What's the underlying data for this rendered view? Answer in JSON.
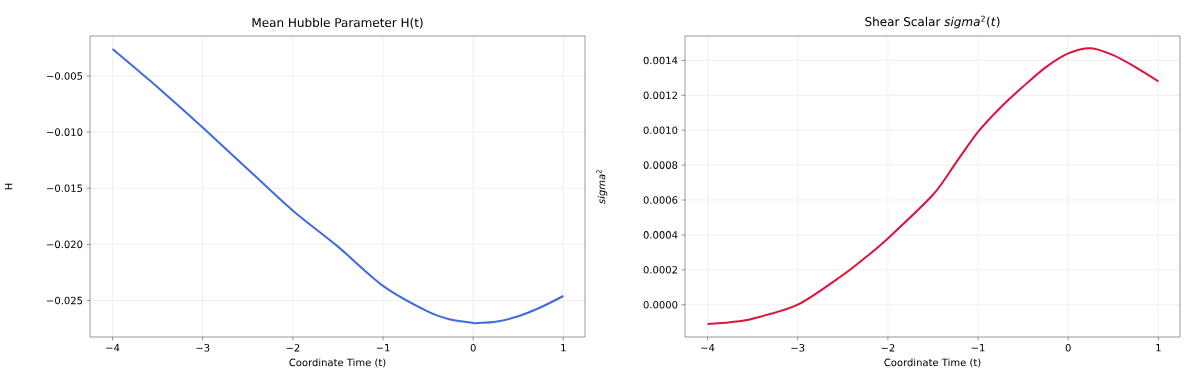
{
  "chart_data": [
    {
      "type": "line",
      "title": "Mean Hubble Parameter H(t)",
      "xlabel": "Coordinate Time (t)",
      "ylabel": "H",
      "x": [
        -4,
        -3.75,
        -3.5,
        -3,
        -2.5,
        -2,
        -1.5,
        -1,
        -0.5,
        -0.25,
        0,
        0.07,
        0.25,
        0.5,
        0.75,
        1
      ],
      "series": [
        {
          "color": "#4169e1",
          "values": [
            -0.0026,
            -0.0043,
            -0.006,
            -0.0096,
            -0.0133,
            -0.017,
            -0.0202,
            -0.0237,
            -0.026,
            -0.0267,
            -0.027,
            -0.027,
            -0.0269,
            -0.0264,
            -0.0256,
            -0.0246
          ]
        }
      ],
      "xlim": [
        -4.25,
        1.24
      ],
      "ylim": [
        -0.02825,
        -0.00144
      ],
      "xticks": [
        {
          "value": -4,
          "label": "−4"
        },
        {
          "value": -3,
          "label": "−3"
        },
        {
          "value": -2,
          "label": "−2"
        },
        {
          "value": -1,
          "label": "−1"
        },
        0,
        1
      ],
      "yticks": [
        {
          "value": -0.025,
          "label": "−0.025"
        },
        {
          "value": -0.02,
          "label": "−0.020"
        },
        {
          "value": -0.015,
          "label": "−0.015"
        },
        {
          "value": -0.01,
          "label": "−0.010"
        },
        {
          "value": -0.005,
          "label": "−0.005"
        }
      ],
      "grid": true
    },
    {
      "type": "line",
      "title": "Shear Scalar *sigma*$^{2}$(*t*)",
      "xlabel": "Coordinate Time (t)",
      "ylabel": "*sigma*$^{2}$",
      "x": [
        -4,
        -3.75,
        -3.5,
        -3,
        -2.5,
        -2.25,
        -2,
        -1.5,
        -1.25,
        -1,
        -0.75,
        -0.5,
        -0.25,
        0,
        0.25,
        0.5,
        0.75,
        1
      ],
      "series": [
        {
          "color": "#dc143c",
          "values": [
            -0.00011,
            -0.0001,
            -8e-05,
            0.0,
            0.00017,
            0.00027,
            0.00038,
            0.00063,
            0.00081,
            0.00099,
            0.00113,
            0.00125,
            0.00136,
            0.00144,
            0.00147,
            0.00143,
            0.00136,
            0.00128
          ]
        }
      ],
      "xlim": [
        -4.25,
        1.24
      ],
      "ylim": [
        -0.000185,
        0.00154
      ],
      "xticks": [
        {
          "value": -4,
          "label": "−4"
        },
        {
          "value": -3,
          "label": "−3"
        },
        {
          "value": -2,
          "label": "−2"
        },
        {
          "value": -1,
          "label": "−1"
        },
        0,
        1
      ],
      "yticks": [
        {
          "value": 0,
          "label": "0.0000"
        },
        {
          "value": 0.0002,
          "label": "0.0002"
        },
        {
          "value": 0.0004,
          "label": "0.0004"
        },
        {
          "value": 0.0006,
          "label": "0.0006"
        },
        {
          "value": 0.0008,
          "label": "0.0008"
        },
        {
          "value": 0.001,
          "label": "0.0010"
        },
        {
          "value": 0.0012,
          "label": "0.0012"
        },
        {
          "value": 0.0014,
          "label": "0.0014"
        }
      ],
      "grid": true
    }
  ]
}
